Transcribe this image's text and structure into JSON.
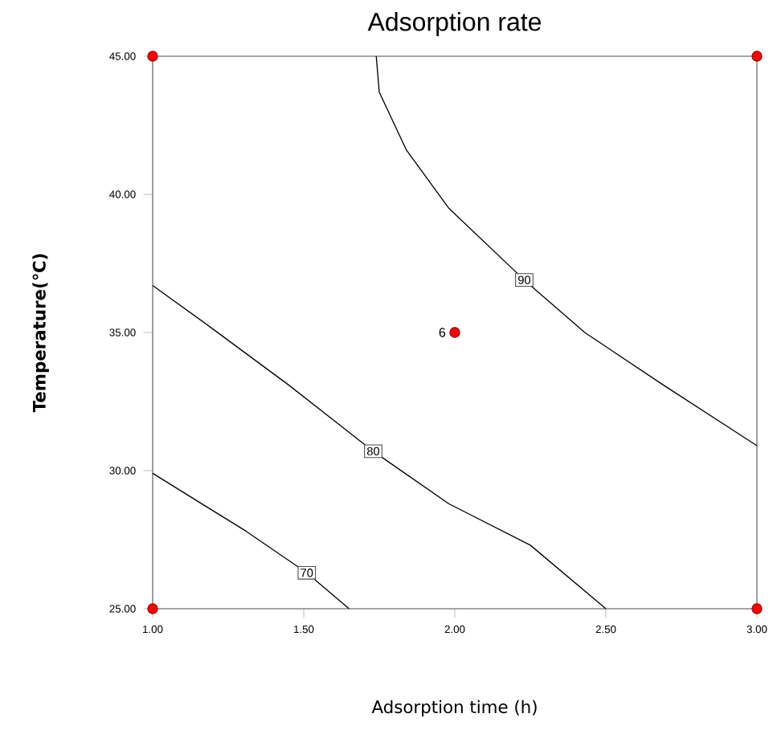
{
  "chart_data": {
    "type": "line",
    "title": "Adsorption rate",
    "xlabel": "Adsorption time (h)",
    "ylabel": "Temperature(℃)",
    "xlim": [
      1,
      3
    ],
    "ylim": [
      25,
      45
    ],
    "xticks": [
      {
        "value": 1,
        "label": "1.00"
      },
      {
        "value": 1.5,
        "label": "1.50"
      },
      {
        "value": 2,
        "label": "2.00"
      },
      {
        "value": 2.5,
        "label": "2.50"
      },
      {
        "value": 3,
        "label": "3.00"
      }
    ],
    "yticks": [
      {
        "value": 25,
        "label": "25.00"
      },
      {
        "value": 30,
        "label": "30.00"
      },
      {
        "value": 35,
        "label": "35.00"
      },
      {
        "value": 40,
        "label": "40.00"
      },
      {
        "value": 45,
        "label": "45.00"
      }
    ],
    "series": [
      {
        "name": "90",
        "color": "#000000",
        "x": [
          1.74,
          1.75,
          1.84,
          1.98,
          2.23,
          2.43,
          2.69,
          3.0
        ],
        "values": [
          45,
          43.7,
          41.6,
          39.5,
          36.9,
          35.0,
          33.1,
          30.9
        ]
      },
      {
        "name": "80",
        "color": "#000000",
        "x": [
          1.0,
          1.19,
          1.45,
          1.73,
          1.98,
          2.25,
          2.5
        ],
        "values": [
          36.7,
          35.2,
          33.1,
          30.7,
          28.8,
          27.3,
          25
        ]
      },
      {
        "name": "70",
        "color": "#000000",
        "x": [
          1.0,
          1.31,
          1.51,
          1.65
        ],
        "values": [
          29.9,
          27.8,
          26.3,
          25
        ]
      },
      {
        "type": "scatter",
        "color": "#ff0000",
        "marker": "circle",
        "x": [
          1,
          3,
          2,
          1,
          3
        ],
        "values": [
          45,
          45,
          35,
          25,
          25
        ]
      }
    ],
    "annotations": [
      {
        "text": "6",
        "x": 2,
        "y": 35
      }
    ],
    "legend": false,
    "grid": false
  }
}
